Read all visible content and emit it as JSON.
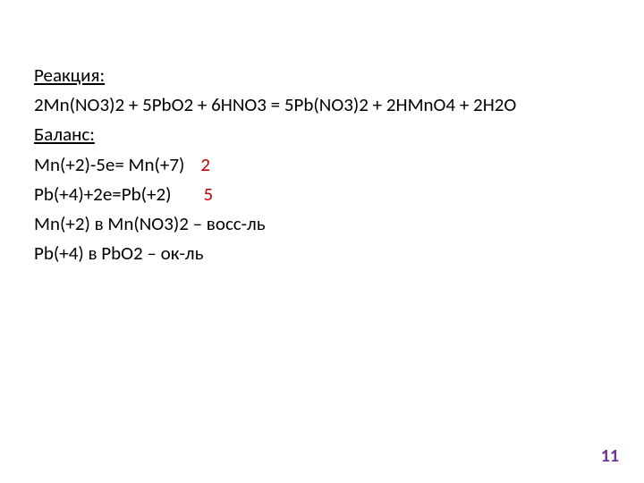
{
  "colors": {
    "text": "#000000",
    "highlight": "#c00000",
    "pageNumber": "#7030a0",
    "background": "#ffffff"
  },
  "typography": {
    "fontFamily": "Calibri, Arial, sans-serif",
    "fontSize": 21,
    "lineHeight": 1.58,
    "pageNumberFontSize": 20,
    "pageNumberWeight": "bold"
  },
  "headings": {
    "reaction": "Реакция:",
    "balance": "Баланс:"
  },
  "equation": "2Mn(NO3)2 + 5PbO2 + 6HNO3 = 5Pb(NO3)2 + 2HMnO4 + 2H2O",
  "halfReactions": {
    "oxidation": {
      "formula": "Mn(+2)-5е= Mn(+7)",
      "coef": "2"
    },
    "reduction": {
      "formula": "Pb(+4)+2е=Pb(+2)",
      "coef": "5"
    }
  },
  "roles": {
    "reducer": "Mn(+2) в Mn(NO3)2 – восс-ль",
    "oxidizer": "Pb(+4) в PbO2 – ок-ль"
  },
  "pageNumber": "11"
}
